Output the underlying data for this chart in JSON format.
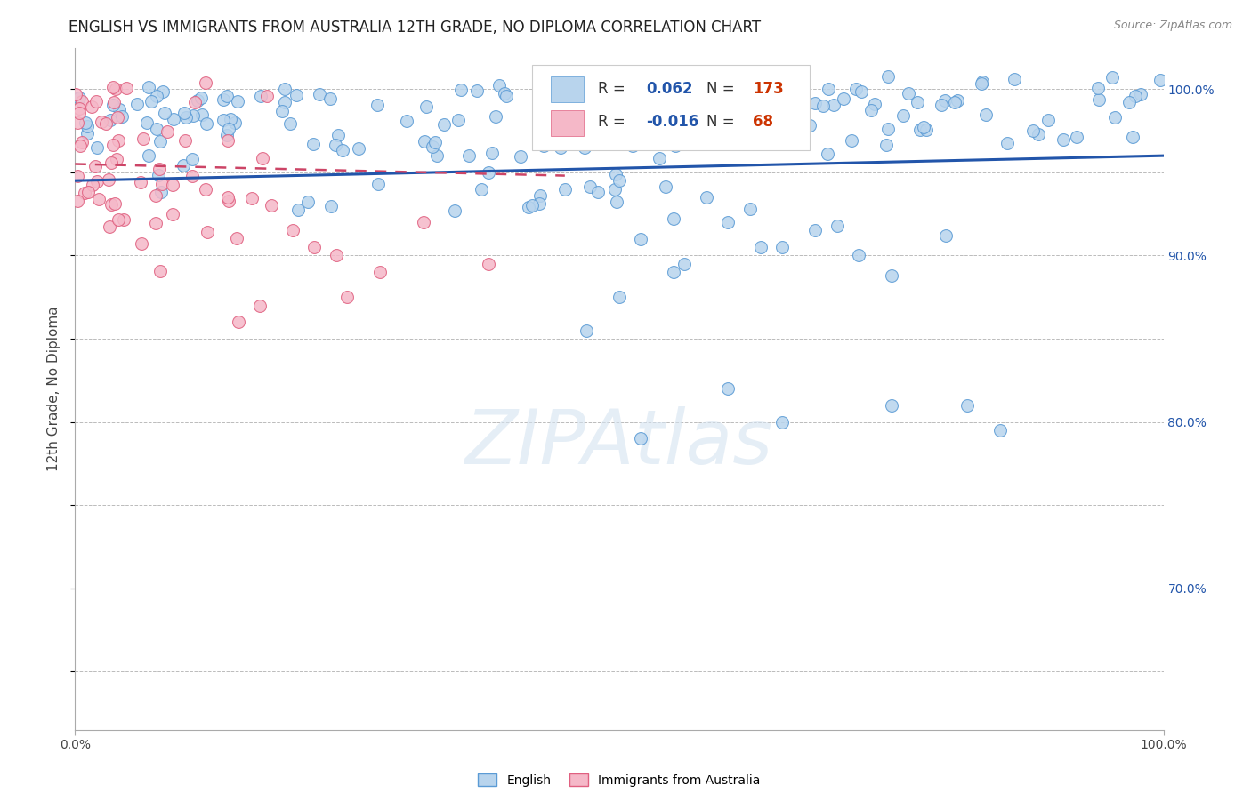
{
  "title": "ENGLISH VS IMMIGRANTS FROM AUSTRALIA 12TH GRADE, NO DIPLOMA CORRELATION CHART",
  "source": "Source: ZipAtlas.com",
  "ylabel": "12th Grade, No Diploma",
  "watermark": "ZIPAtlas",
  "english_R": 0.062,
  "english_N": 173,
  "immigrant_R": -0.016,
  "immigrant_N": 68,
  "english_color": "#b8d4ed",
  "english_edge_color": "#5b9bd5",
  "immigrant_color": "#f5b8c8",
  "immigrant_edge_color": "#e06080",
  "english_line_color": "#2255aa",
  "immigrant_line_color": "#cc4466",
  "grid_color": "#bbbbbb",
  "background_color": "#ffffff",
  "xmin": 0.0,
  "xmax": 1.0,
  "ymin": 0.615,
  "ymax": 1.025,
  "legend_r_color": "#2255aa",
  "legend_n_color": "#cc3300",
  "title_fontsize": 12,
  "axis_label_fontsize": 11,
  "tick_fontsize": 10,
  "marker_size": 100
}
